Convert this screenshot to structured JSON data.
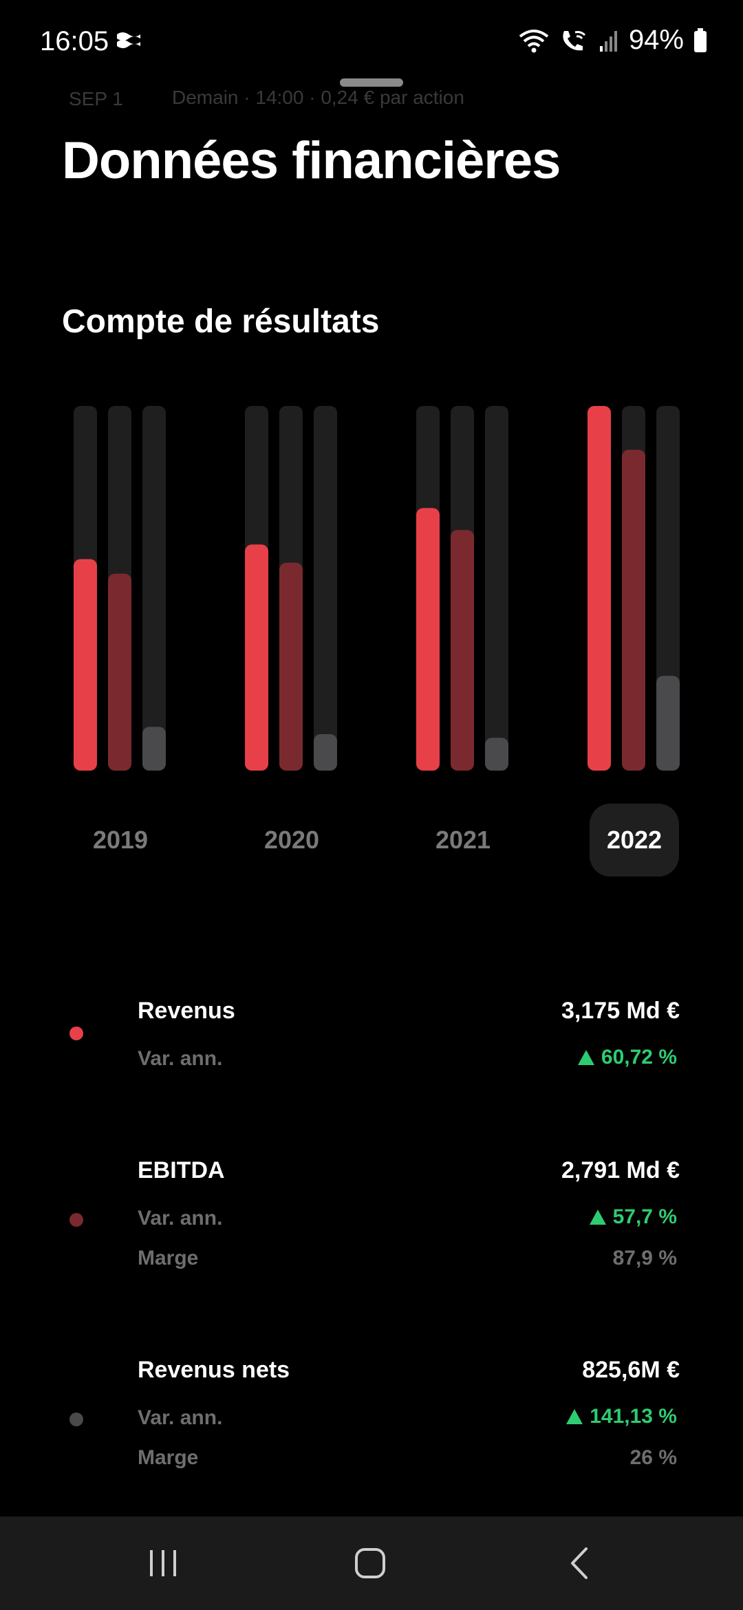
{
  "status_bar": {
    "time": "16:05",
    "battery": "94%"
  },
  "peek": {
    "left": "SEP 1",
    "text": "Demain · 14:00 · 0,24 € par action"
  },
  "page_title": "Données financières",
  "section_title": "Compte de résultats",
  "chart_data": {
    "type": "bar",
    "categories": [
      "2019",
      "2020",
      "2021",
      "2022"
    ],
    "selected_category": "2022",
    "series": [
      {
        "key": "revenue",
        "values": [
          0.58,
          0.62,
          0.72,
          1.0
        ],
        "color": "#e84048"
      },
      {
        "key": "ebitda",
        "values": [
          0.54,
          0.57,
          0.66,
          0.88
        ],
        "color": "#7a2a2e"
      },
      {
        "key": "net",
        "values": [
          0.12,
          0.1,
          0.09,
          0.26
        ],
        "color": "#4a4a4c"
      }
    ],
    "track_color": "#1f1f1f",
    "ylim": [
      0,
      1
    ]
  },
  "metrics": [
    {
      "name": "Revenus",
      "value": "3,175 Md €",
      "change_label": "Var. ann.",
      "change": "60,72 %",
      "color": "#e84048"
    },
    {
      "name": "EBITDA",
      "value": "2,791 Md €",
      "change_label": "Var. ann.",
      "change": "57,7 %",
      "margin_label": "Marge",
      "margin": "87,9 %",
      "color": "#7a2a2e"
    },
    {
      "name": "Revenus nets",
      "value": "825,6M €",
      "change_label": "Var. ann.",
      "change": "141,13 %",
      "margin_label": "Marge",
      "margin": "26 %",
      "color": "#4a4a4c"
    }
  ],
  "icons": {
    "wifi": "wifi-icon",
    "wifi_calling": "wifi-calling-icon",
    "signal": "signal-icon",
    "battery": "battery-icon",
    "flag": "flag-icon",
    "nav_recents": "recents-icon",
    "nav_home": "home-icon",
    "nav_back": "back-icon"
  }
}
